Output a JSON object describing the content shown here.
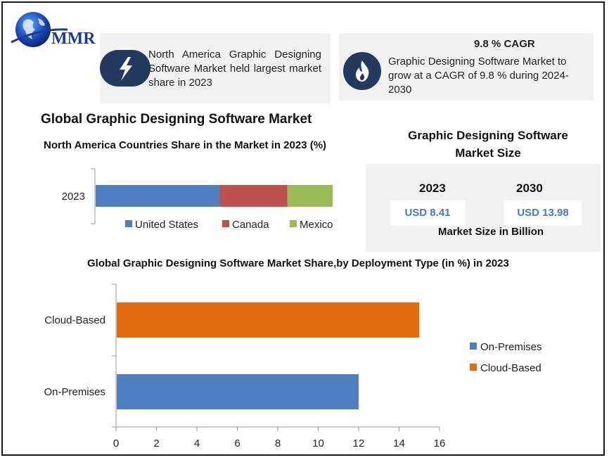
{
  "brand": {
    "logo_text": "MMR"
  },
  "highlight": {
    "text": "North America Graphic Designing Software Market held largest market share in 2023"
  },
  "cagr": {
    "title": "9.8 % CAGR",
    "text": "Graphic Designing Software Market to grow at a CAGR of 9.8 % during 2024-2030"
  },
  "main_title": "Global Graphic Designing Software Market",
  "market_size": {
    "title": "Graphic Designing Software Market Size",
    "years": [
      {
        "year": "2023",
        "value": "USD 8.41"
      },
      {
        "year": "2030",
        "value": "USD 13.98"
      }
    ],
    "unit": "Market Size in Billion"
  },
  "colors": {
    "blue": "#4f7fbf",
    "red": "#c0504d",
    "green": "#9bbb59",
    "orange": "#e06c0f",
    "navy": "#233a5e"
  },
  "chart_data": [
    {
      "type": "bar",
      "orientation": "horizontal",
      "stacked": true,
      "title": "North America Countries Share in the Market in 2023 (%)",
      "categories": [
        "2023"
      ],
      "series": [
        {
          "name": "United States",
          "values": [
            55
          ],
          "color": "#4f7fbf"
        },
        {
          "name": "Canada",
          "values": [
            30
          ],
          "color": "#c0504d"
        },
        {
          "name": "Mexico",
          "values": [
            20
          ],
          "color": "#9bbb59"
        }
      ],
      "legend": "bottom"
    },
    {
      "type": "bar",
      "orientation": "horizontal",
      "title": "Global Graphic Designing Software Market Share,by Deployment Type (in %) in 2023",
      "categories": [
        "On-Premises",
        "Cloud-Based"
      ],
      "values": [
        12,
        15
      ],
      "colors": [
        "#4f7fbf",
        "#e06c0f"
      ],
      "xlim": [
        0,
        16
      ],
      "xticks": [
        "0",
        "2",
        "4",
        "6",
        "8",
        "10",
        "12",
        "14",
        "16"
      ],
      "legend_items": [
        "On-Premises",
        "Cloud-Based"
      ],
      "legend": "right"
    }
  ]
}
